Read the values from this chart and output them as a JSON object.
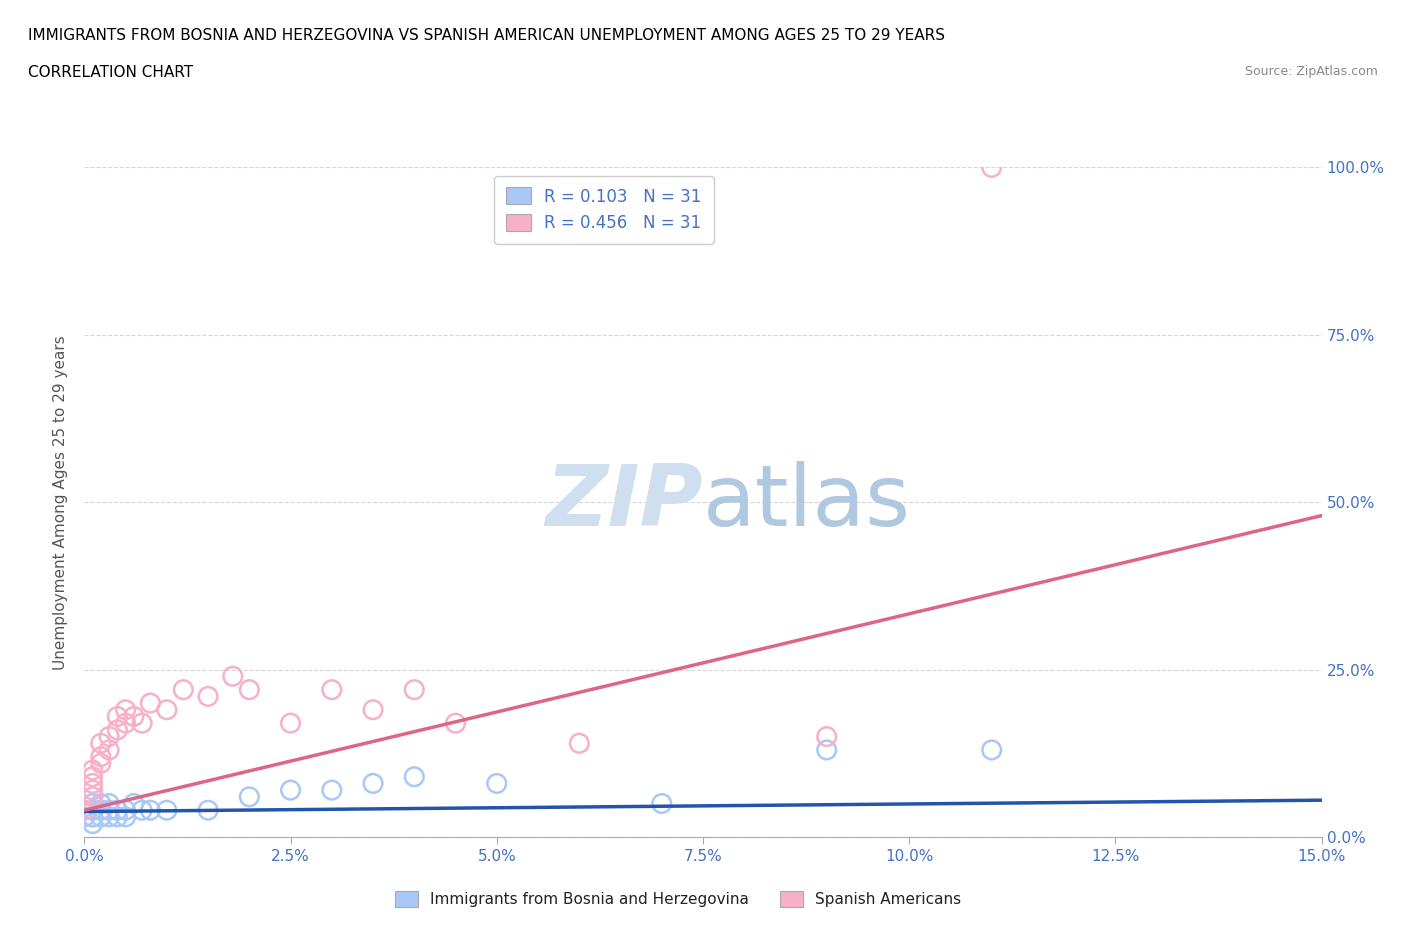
{
  "title_line1": "IMMIGRANTS FROM BOSNIA AND HERZEGOVINA VS SPANISH AMERICAN UNEMPLOYMENT AMONG AGES 25 TO 29 YEARS",
  "title_line2": "CORRELATION CHART",
  "source_text": "Source: ZipAtlas.com",
  "ylabel": "Unemployment Among Ages 25 to 29 years",
  "xlabel_ticks": [
    "0.0%",
    "2.5%",
    "5.0%",
    "7.5%",
    "10.0%",
    "12.5%",
    "15.0%"
  ],
  "ylabel_ticks_right": [
    "100.0%",
    "75.0%",
    "50.0%",
    "25.0%",
    "0.0%"
  ],
  "xlim": [
    0.0,
    0.15
  ],
  "ylim": [
    0.0,
    1.0
  ],
  "r_bosnia": 0.103,
  "n_bosnia": 31,
  "r_spanish": 0.456,
  "n_spanish": 31,
  "bosnia_color": "#a8c8f8",
  "spanish_color": "#f8b0c8",
  "bosnia_line_color": "#2255aa",
  "spanish_line_color": "#dd6688",
  "watermark_color": "#d0dff0",
  "grid_color": "#cccccc",
  "tick_color": "#4472c4",
  "bosnia_x": [
    0.0,
    0.001,
    0.001,
    0.001,
    0.001,
    0.001,
    0.002,
    0.002,
    0.002,
    0.002,
    0.003,
    0.003,
    0.003,
    0.004,
    0.004,
    0.005,
    0.005,
    0.006,
    0.007,
    0.008,
    0.01,
    0.015,
    0.02,
    0.025,
    0.03,
    0.035,
    0.04,
    0.05,
    0.07,
    0.09,
    0.11
  ],
  "bosnia_y": [
    0.03,
    0.02,
    0.03,
    0.03,
    0.04,
    0.05,
    0.03,
    0.04,
    0.04,
    0.05,
    0.03,
    0.04,
    0.05,
    0.03,
    0.04,
    0.03,
    0.04,
    0.05,
    0.04,
    0.04,
    0.04,
    0.04,
    0.06,
    0.07,
    0.07,
    0.08,
    0.09,
    0.08,
    0.05,
    0.13,
    0.13
  ],
  "spanish_x": [
    0.0,
    0.001,
    0.001,
    0.001,
    0.001,
    0.001,
    0.002,
    0.002,
    0.002,
    0.003,
    0.003,
    0.004,
    0.004,
    0.005,
    0.005,
    0.006,
    0.007,
    0.008,
    0.01,
    0.012,
    0.015,
    0.018,
    0.02,
    0.025,
    0.03,
    0.035,
    0.04,
    0.045,
    0.06,
    0.09,
    0.11
  ],
  "spanish_y": [
    0.04,
    0.06,
    0.07,
    0.08,
    0.09,
    0.1,
    0.11,
    0.12,
    0.14,
    0.13,
    0.15,
    0.16,
    0.18,
    0.17,
    0.19,
    0.18,
    0.17,
    0.2,
    0.19,
    0.22,
    0.21,
    0.24,
    0.22,
    0.17,
    0.22,
    0.19,
    0.22,
    0.17,
    0.14,
    0.15,
    1.0
  ],
  "bosnia_line_x0": 0.0,
  "bosnia_line_y0": 0.038,
  "bosnia_line_x1": 0.15,
  "bosnia_line_y1": 0.055,
  "spanish_line_x0": 0.0,
  "spanish_line_y0": 0.04,
  "spanish_line_x1": 0.15,
  "spanish_line_y1": 0.48
}
